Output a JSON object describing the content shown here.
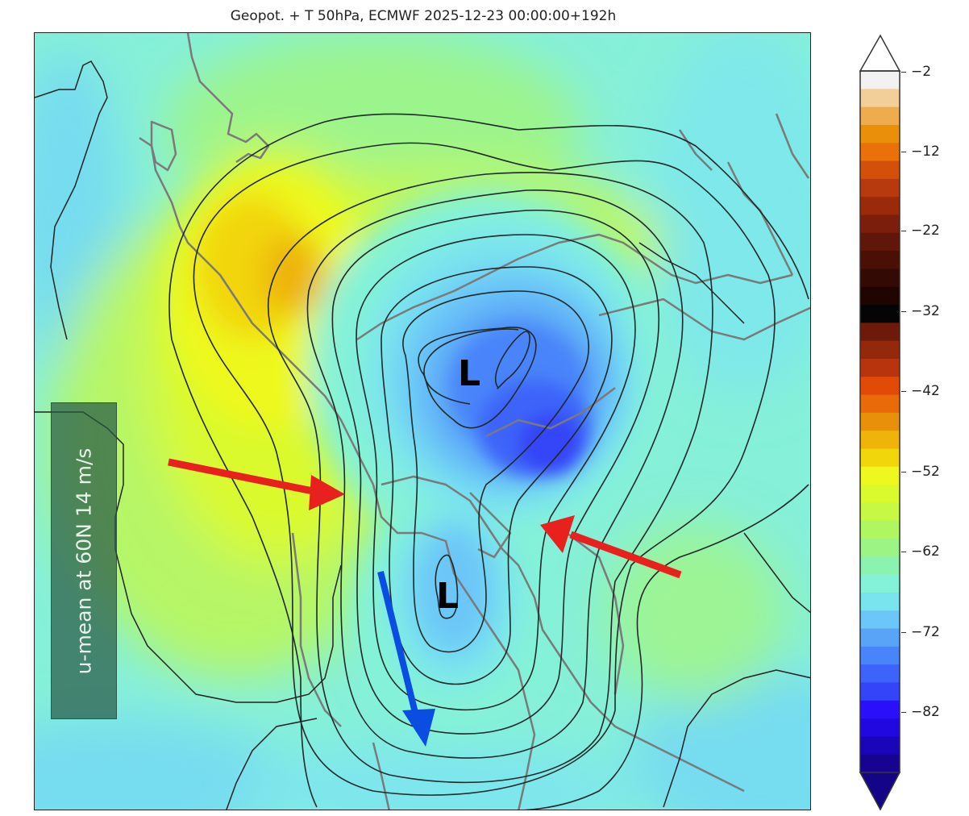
{
  "title": "Geopot. + T 50hPa, ECMWF 2025-12-23 00:00:00+192h",
  "map": {
    "projection": "north-polar stereographic",
    "field_shaded": "Temperature 50hPa (°C)",
    "field_contour": "Geopotential height 50hPa",
    "annotations": {
      "low_labels": [
        "L",
        "L"
      ],
      "umean_box": "u-mean at 60N 14 m/s",
      "arrows": [
        {
          "color": "#e8201e",
          "name": "red-arrow-west",
          "direction": "pointing east-southeast toward trough"
        },
        {
          "color": "#e8201e",
          "name": "red-arrow-east",
          "direction": "pointing west-northwest toward trough"
        },
        {
          "color": "#0a4de0",
          "name": "blue-arrow",
          "direction": "pointing south along second low"
        }
      ]
    }
  },
  "colorbar": {
    "ticks": [
      "−2",
      "−12",
      "−22",
      "−32",
      "−42",
      "−52",
      "−62",
      "−72",
      "−82"
    ],
    "range": [
      -90,
      0
    ],
    "extend": "both",
    "colors_top_to_bottom": [
      "#f2f2f2",
      "#f2cf98",
      "#eeac4e",
      "#ea8f0a",
      "#ea700a",
      "#d2500a",
      "#b73a0e",
      "#9a2a0a",
      "#7c1e0c",
      "#60160a",
      "#4a1006",
      "#340a04",
      "#200400",
      "#050505",
      "#6e1a0a",
      "#93280a",
      "#b7340c",
      "#e24a08",
      "#e86a08",
      "#e8900a",
      "#eeb40a",
      "#f2d60c",
      "#eef81e",
      "#dafa2e",
      "#c6f844",
      "#b0f660",
      "#9cf484",
      "#8cf2b0",
      "#84f2d8",
      "#7ae4ee",
      "#6cc6f8",
      "#5aa4f8",
      "#4a84fa",
      "#3c64fa",
      "#3444f8",
      "#2a10f8",
      "#2208e0",
      "#1a06b8",
      "#160490"
    ],
    "upper_extension_color": "#ffffff",
    "lower_extension_color": "#140488"
  },
  "chart_data": {
    "type": "heatmap",
    "title": "Geopot. + T 50hPa, ECMWF 2025-12-23 00:00:00+192h",
    "colorbar_ticks": [
      -2,
      -12,
      -22,
      -32,
      -42,
      -52,
      -62,
      -72,
      -82
    ],
    "colorbar_range": [
      -90,
      0
    ],
    "features": [
      {
        "label": "L",
        "type": "low",
        "position": "primary vortex center over Arctic/Greenland side"
      },
      {
        "label": "L",
        "type": "low",
        "position": "secondary low displaced south toward North America"
      },
      {
        "label": "warm anomaly",
        "value_range": [
          -50,
          -44
        ],
        "position": "upper-left (Siberia/Pacific side)"
      },
      {
        "label": "cold core",
        "value_range": [
          -82,
          -75
        ],
        "position": "center-right vortex"
      }
    ],
    "annotation": "u-mean at 60N 14 m/s"
  }
}
